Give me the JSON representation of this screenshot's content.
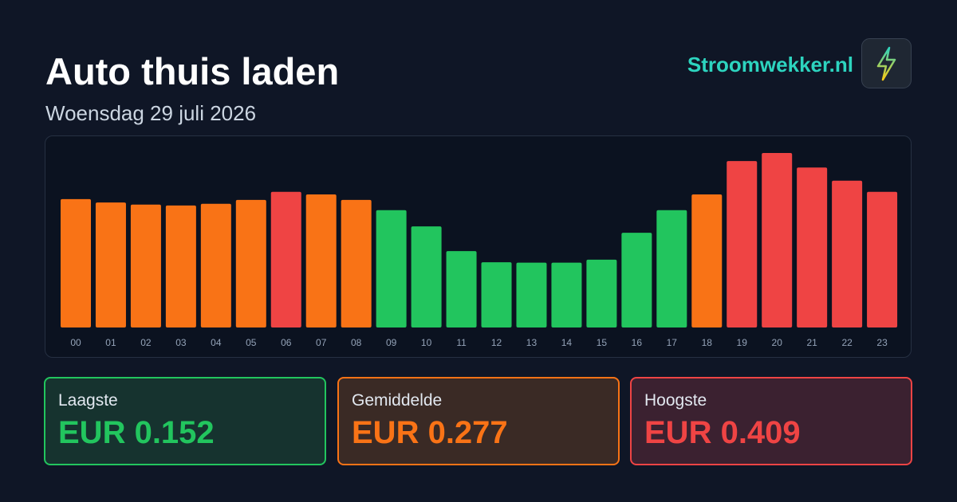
{
  "header": {
    "title": "Auto thuis laden",
    "subtitle": "Woensdag 29 juli 2026",
    "brand": "Stroomwekker.nl"
  },
  "chart_data": {
    "type": "bar",
    "categories": [
      "00",
      "01",
      "02",
      "03",
      "04",
      "05",
      "06",
      "07",
      "08",
      "09",
      "10",
      "11",
      "12",
      "13",
      "14",
      "15",
      "16",
      "17",
      "18",
      "19",
      "20",
      "21",
      "22",
      "23"
    ],
    "values": [
      0.301,
      0.293,
      0.288,
      0.286,
      0.29,
      0.299,
      0.318,
      0.312,
      0.299,
      0.275,
      0.237,
      0.179,
      0.153,
      0.152,
      0.152,
      0.159,
      0.222,
      0.275,
      0.312,
      0.39,
      0.409,
      0.375,
      0.344,
      0.318
    ],
    "colors": [
      "#f97316",
      "#f97316",
      "#f97316",
      "#f97316",
      "#f97316",
      "#f97316",
      "#ef4444",
      "#f97316",
      "#f97316",
      "#22c55e",
      "#22c55e",
      "#22c55e",
      "#22c55e",
      "#22c55e",
      "#22c55e",
      "#22c55e",
      "#22c55e",
      "#22c55e",
      "#f97316",
      "#ef4444",
      "#ef4444",
      "#ef4444",
      "#ef4444",
      "#ef4444"
    ]
  },
  "cards": [
    {
      "label": "Laagste",
      "value": "EUR 0.152"
    },
    {
      "label": "Gemiddelde",
      "value": "EUR 0.277"
    },
    {
      "label": "Hoogste",
      "value": "EUR 0.409"
    }
  ]
}
